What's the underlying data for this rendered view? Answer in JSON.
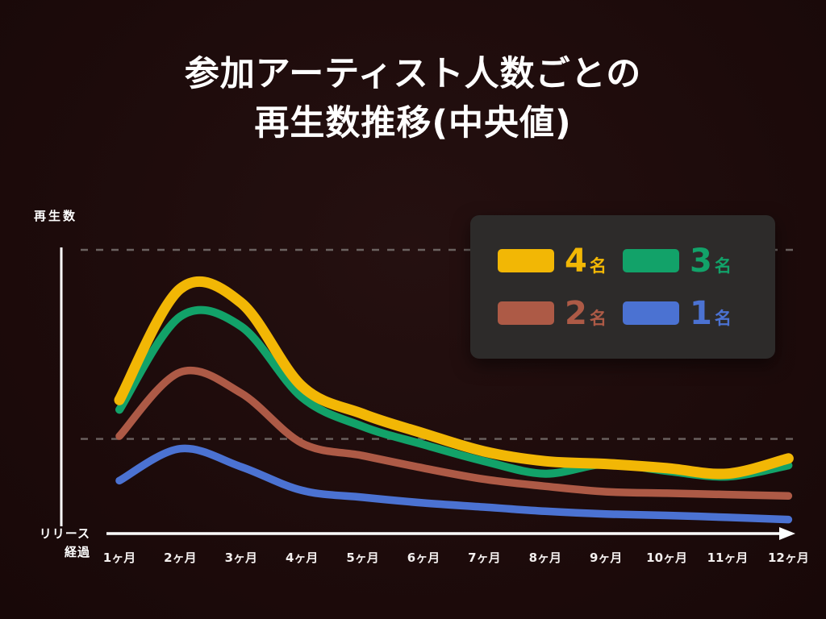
{
  "title": {
    "line1": "参加アーティスト人数ごとの",
    "line2": "再生数推移(中央値)"
  },
  "axis": {
    "y_label": "再生数",
    "x_label_line1": "リリース",
    "x_label_line2": "経過"
  },
  "legend": {
    "items": [
      {
        "num": "4",
        "suffix": "名",
        "color": "#f2b705"
      },
      {
        "num": "3",
        "suffix": "名",
        "color": "#12a269"
      },
      {
        "num": "2",
        "suffix": "名",
        "color": "#ad5a46"
      },
      {
        "num": "1",
        "suffix": "名",
        "color": "#4b72d2"
      }
    ]
  },
  "chart_data": {
    "type": "line",
    "title": "参加アーティスト人数ごとの再生数推移(中央値)",
    "xlabel": "リリース経過",
    "ylabel": "再生数",
    "x": [
      "1ヶ月",
      "2ヶ月",
      "3ヶ月",
      "4ヶ月",
      "5ヶ月",
      "6ヶ月",
      "7ヶ月",
      "8ヶ月",
      "9ヶ月",
      "10ヶ月",
      "11ヶ月",
      "12ヶ月"
    ],
    "series": [
      {
        "name": "4名",
        "color": "#f2b705",
        "values": [
          46,
          86,
          81,
          51,
          41,
          34,
          27.5,
          24,
          23,
          21.5,
          19.5,
          25
        ]
      },
      {
        "name": "3名",
        "color": "#12a269",
        "values": [
          42.5,
          76,
          72.5,
          47,
          36.5,
          30,
          24,
          19.5,
          23,
          20.5,
          18.5,
          22.5
        ]
      },
      {
        "name": "2名",
        "color": "#ad5a46",
        "values": [
          33,
          56,
          48.5,
          30.5,
          26,
          21.5,
          17.5,
          15,
          13,
          12.5,
          12,
          11.5
        ]
      },
      {
        "name": "1名",
        "color": "#4b72d2",
        "values": [
          17,
          28.5,
          22,
          13.5,
          11,
          9,
          7.5,
          6,
          5,
          4.5,
          3.8,
          3
        ]
      }
    ],
    "ylim": [
      0,
      100
    ],
    "y_units": "relative plays (no numeric scale shown on axis)",
    "gridlines_y": [
      100,
      32
    ],
    "grid": "dashed horizontal",
    "legend_position": "top-right"
  },
  "colors": {
    "background": "#1d0b0b",
    "legend_background": "#2d2b2a",
    "grid": "#6b6260",
    "axis": "#ffffff",
    "title_text": "#ffffff"
  }
}
